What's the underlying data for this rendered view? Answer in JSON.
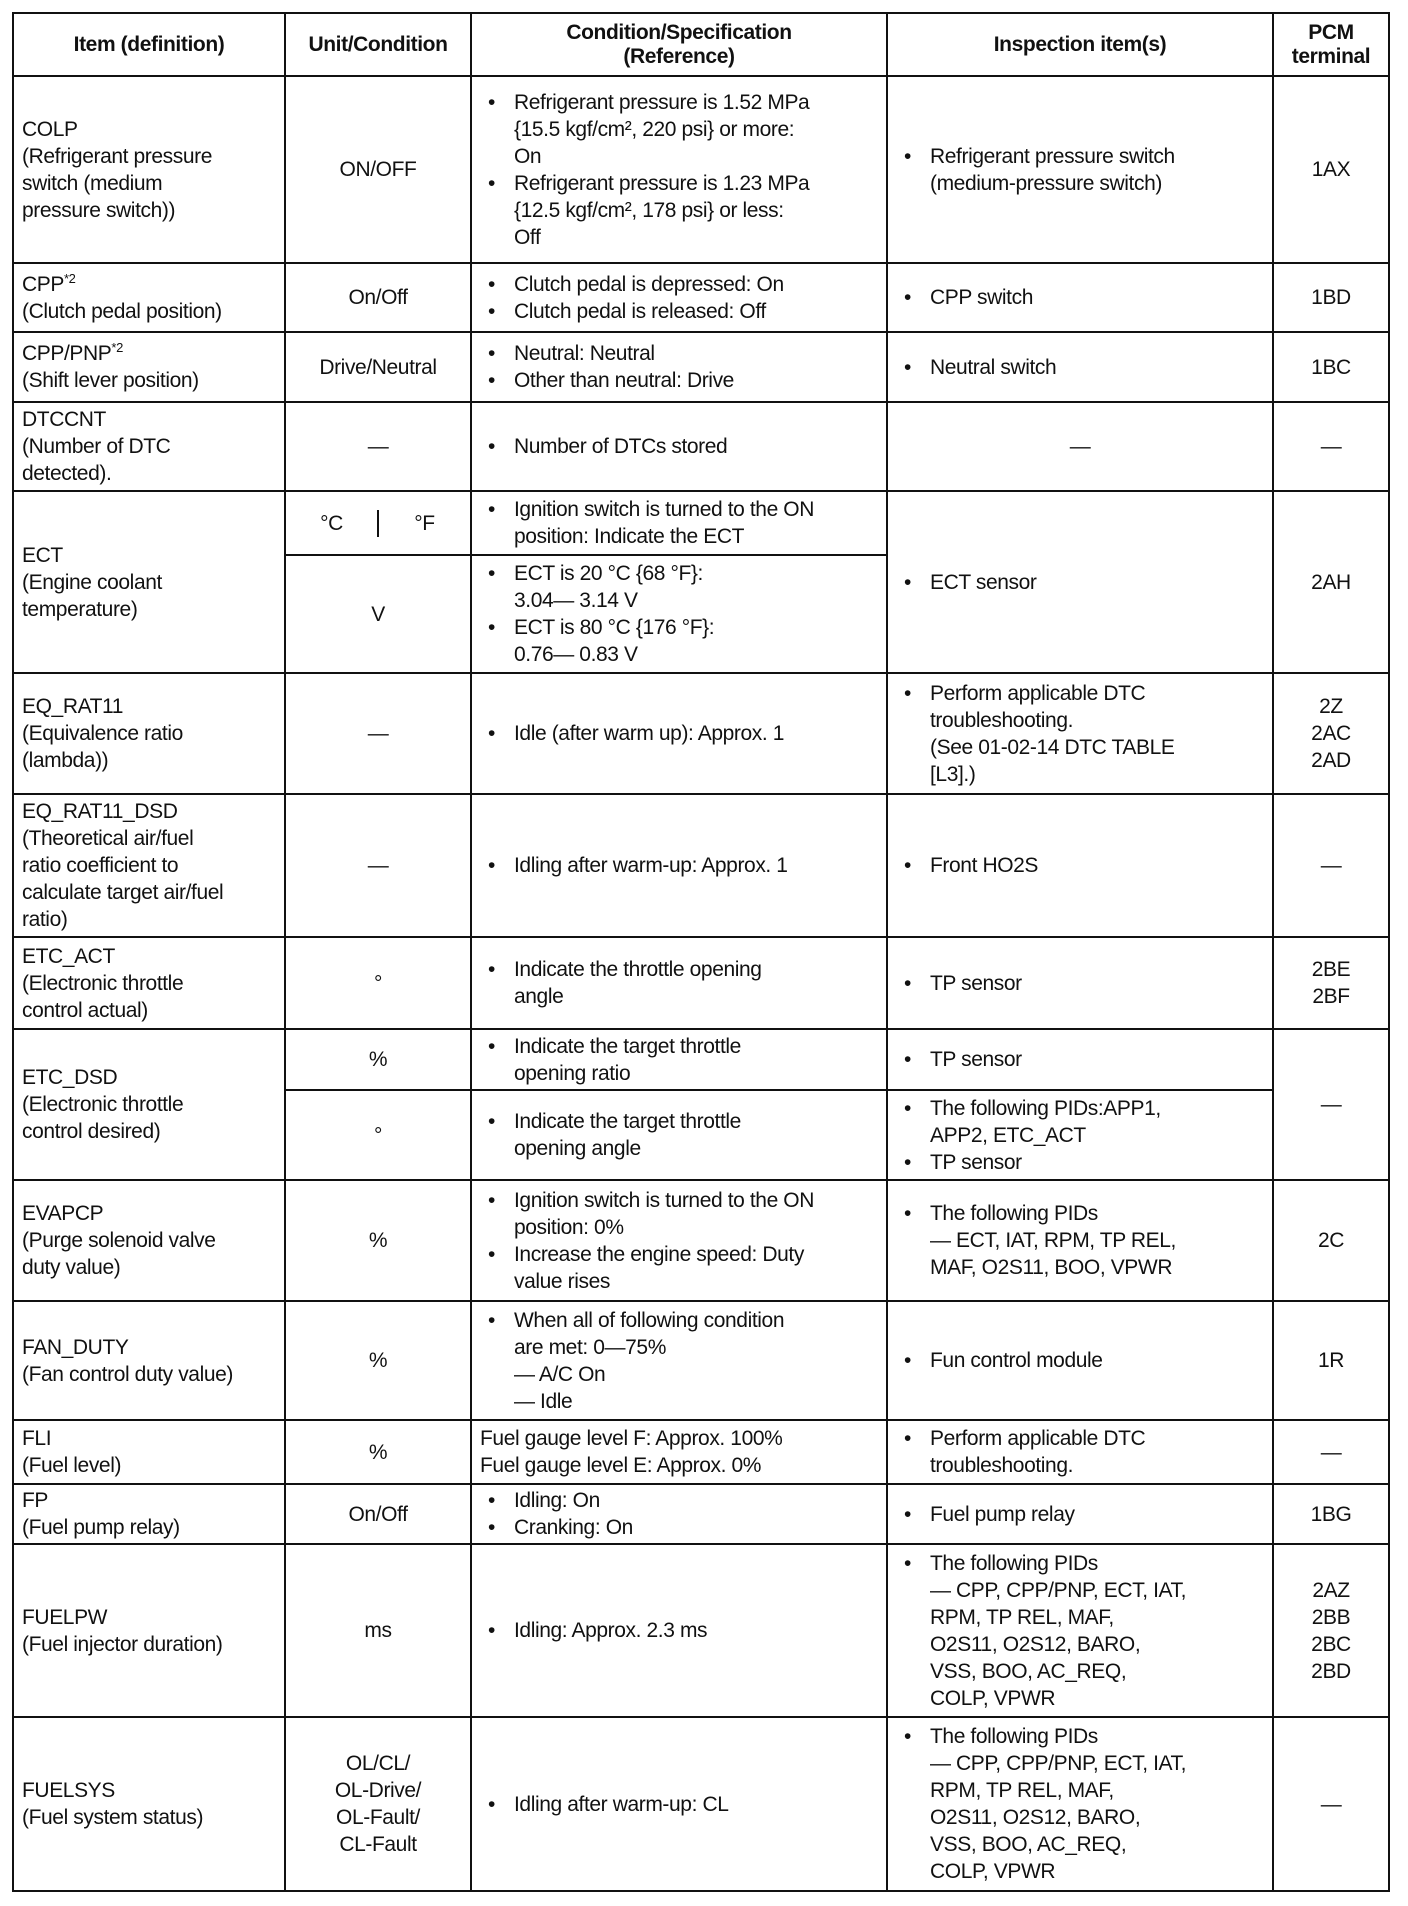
{
  "headers": [
    "Item (definition)",
    "Unit/Condition",
    "Condition/Specification\n(Reference)",
    "Inspection item(s)",
    "PCM\nterminal"
  ],
  "rows": [
    {
      "h": 187,
      "item": {
        "name": "COLP",
        "desc": "(Refrigerant pressure\nswitch (medium\npressure switch))"
      },
      "unit": "ON/OFF",
      "spec": [
        {
          "b": "Refrigerant pressure is 1.52 MPa\n{15.5 kgf/cm², 220 psi} or more:\nOn"
        },
        {
          "b": "Refrigerant pressure is 1.23 MPa\n{12.5 kgf/cm², 178 psi} or less:\nOff"
        }
      ],
      "insp": [
        {
          "b": "Refrigerant pressure switch\n(medium-pressure switch)"
        }
      ],
      "pcm": "1AX"
    },
    {
      "h": 69,
      "item": {
        "name": "CPP",
        "sup": "*2",
        "desc": "(Clutch pedal position)"
      },
      "unit": "On/Off",
      "spec": [
        {
          "b": "Clutch pedal is depressed: On"
        },
        {
          "b": "Clutch pedal is released: Off"
        }
      ],
      "insp": [
        {
          "b": "CPP switch"
        }
      ],
      "pcm": "1BD"
    },
    {
      "h": 70,
      "item": {
        "name": "CPP/PNP",
        "sup": "*2",
        "desc": "(Shift lever position)"
      },
      "unit": "Drive/Neutral",
      "spec": [
        {
          "b": "Neutral: Neutral"
        },
        {
          "b": "Other than neutral: Drive"
        }
      ],
      "insp": [
        {
          "b": "Neutral switch"
        }
      ],
      "pcm": "1BC"
    },
    {
      "h": 89,
      "item": {
        "name": "DTCCNT",
        "desc": "(Number of DTC\ndetected)."
      },
      "unit": "—",
      "spec": [
        {
          "b": "Number of DTCs stored"
        }
      ],
      "insp_text": "—",
      "pcm": "—"
    },
    {
      "h": 64,
      "item": {
        "name": "ECT",
        "desc": "(Engine coolant\ntemperature)"
      },
      "item_rows": 2,
      "unit_split": [
        "°C",
        "°F"
      ],
      "spec": [
        {
          "b": "Ignition switch is turned to the ON\nposition: Indicate the ECT"
        }
      ],
      "insp": [
        {
          "b": "ECT sensor"
        }
      ],
      "insp_rows": 2,
      "pcm": "2AH",
      "pcm_rows": 2
    },
    {
      "h": 118,
      "cont": true,
      "unit": "V",
      "spec": [
        {
          "b": "ECT is 20 °C {68 °F}:\n3.04— 3.14 V"
        },
        {
          "b": "ECT is 80 °C {176 °F}:\n0.76— 0.83 V"
        }
      ]
    },
    {
      "h": 121,
      "item": {
        "name": "EQ_RAT11",
        "desc": "(Equivalence ratio\n(lambda))"
      },
      "unit": "—",
      "spec": [
        {
          "b": "Idle (after warm up): Approx. 1"
        }
      ],
      "insp": [
        {
          "b": "Perform applicable DTC\ntroubleshooting.\n(See 01-02-14 DTC TABLE\n[L3].)"
        }
      ],
      "pcm": "2Z\n2AC\n2AD"
    },
    {
      "h": 143,
      "item": {
        "name": "EQ_RAT11_DSD",
        "desc": "(Theoretical air/fuel\nratio coefficient to\ncalculate target air/fuel\nratio)"
      },
      "unit": "—",
      "spec": [
        {
          "b": "Idling after warm-up: Approx. 1"
        }
      ],
      "insp": [
        {
          "b": "Front HO2S"
        }
      ],
      "pcm": "—"
    },
    {
      "h": 92,
      "item": {
        "name": "ETC_ACT",
        "desc": "(Electronic throttle\ncontrol actual)"
      },
      "unit": "°",
      "spec": [
        {
          "b": "Indicate the throttle opening\nangle"
        }
      ],
      "insp": [
        {
          "b": "TP sensor"
        }
      ],
      "pcm": "2BE\n2BF"
    },
    {
      "h": 61,
      "item": {
        "name": "ETC_DSD",
        "desc": "(Electronic throttle\ncontrol desired)"
      },
      "item_rows": 2,
      "unit": "%",
      "spec": [
        {
          "b": "Indicate the target throttle\nopening ratio"
        }
      ],
      "insp": [
        {
          "b": "TP sensor"
        }
      ],
      "pcm": "—",
      "pcm_rows": 2
    },
    {
      "h": 90,
      "cont": true,
      "unit": "°",
      "spec": [
        {
          "b": "Indicate the target throttle\nopening angle"
        }
      ],
      "insp": [
        {
          "b": "The following PIDs:APP1,\nAPP2, ETC_ACT"
        },
        {
          "b": "TP sensor"
        }
      ]
    },
    {
      "h": 121,
      "item": {
        "name": "EVAPCP",
        "desc": "(Purge solenoid valve\nduty value)"
      },
      "unit": "%",
      "spec": [
        {
          "b": "Ignition switch is turned to the ON\nposition: 0%"
        },
        {
          "b": "Increase the engine speed: Duty\nvalue rises"
        }
      ],
      "insp": [
        {
          "b": "The following PIDs"
        },
        {
          "d": "— ECT, IAT, RPM, TP REL,\n   MAF, O2S11, BOO, VPWR"
        }
      ],
      "pcm": "2C"
    },
    {
      "h": 119,
      "item": {
        "name": "FAN_DUTY",
        "desc": "(Fan control duty value)"
      },
      "unit": "%",
      "spec": [
        {
          "b": "When all of following condition\nare met: 0—75%"
        },
        {
          "d": "— A/C On\n— Idle"
        }
      ],
      "insp": [
        {
          "b": "Fun control module"
        }
      ],
      "pcm": "1R"
    },
    {
      "h": 64,
      "item": {
        "name": "FLI",
        "desc": "(Fuel level)"
      },
      "unit": "%",
      "spec": [
        {
          "t": "Fuel gauge level F: Approx. 100%\nFuel gauge level E: Approx. 0%"
        }
      ],
      "insp": [
        {
          "b": "Perform applicable DTC\ntroubleshooting."
        }
      ],
      "pcm": "—"
    },
    {
      "h": 60,
      "item": {
        "name": "FP",
        "desc": "(Fuel pump relay)"
      },
      "unit": "On/Off",
      "spec": [
        {
          "b": "Idling: On"
        },
        {
          "b": "Cranking: On"
        }
      ],
      "insp": [
        {
          "b": "Fuel pump relay"
        }
      ],
      "pcm": "1BG"
    },
    {
      "h": 173,
      "item": {
        "name": "FUELPW",
        "desc": "(Fuel injector duration)"
      },
      "unit": "ms",
      "spec": [
        {
          "b": "Idling: Approx. 2.3 ms"
        }
      ],
      "insp": [
        {
          "b": "The following PIDs"
        },
        {
          "d": "— CPP, CPP/PNP, ECT, IAT,\n   RPM, TP REL, MAF,\n   O2S11, O2S12, BARO,\n   VSS, BOO, AC_REQ,\n   COLP, VPWR"
        }
      ],
      "pcm": "2AZ\n2BB\n2BC\n2BD"
    },
    {
      "h": 174,
      "item": {
        "name": "FUELSYS",
        "desc": "(Fuel system status)"
      },
      "unit": "OL/CL/\nOL-Drive/\nOL-Fault/\nCL-Fault",
      "spec": [
        {
          "b": "Idling after warm-up: CL"
        }
      ],
      "insp": [
        {
          "b": "The following PIDs"
        },
        {
          "d": "— CPP, CPP/PNP, ECT, IAT,\n   RPM, TP REL, MAF,\n   O2S11, O2S12, BARO,\n   VSS, BOO, AC_REQ,\n   COLP, VPWR"
        }
      ],
      "pcm": "—"
    }
  ]
}
